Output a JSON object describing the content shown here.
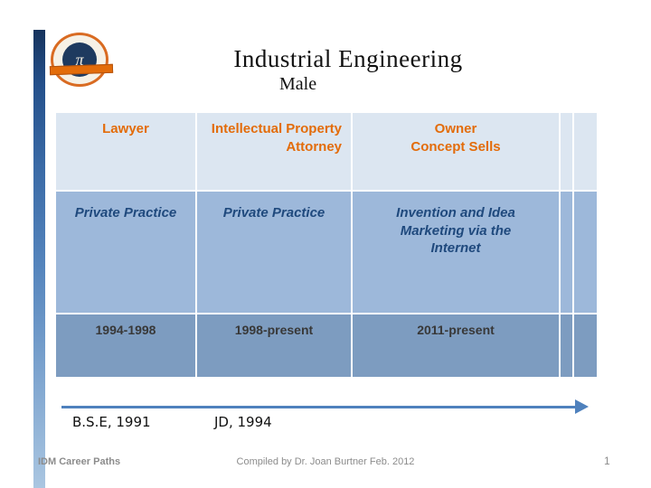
{
  "slide": {
    "title": "Industrial Engineering",
    "subtitle": "Male",
    "footer": {
      "left": "IDM Career Paths",
      "center": "Compiled by Dr. Joan Burtner Feb. 2012",
      "page": "1"
    }
  },
  "table": {
    "header": [
      "Lawyer",
      "Intellectual Property\nAttorney",
      "Owner\nConcept Sells"
    ],
    "roles": [
      "Private Practice",
      "Private Practice",
      "Invention and Idea\nMarketing via the\nInternet"
    ],
    "dates": [
      "1994-1998",
      "1998-present",
      "2011-present"
    ]
  },
  "timeline": {
    "labels": [
      "B.S.E, 1991",
      "JD, 1994"
    ]
  },
  "logo": {
    "monogram": "π"
  },
  "colors": {
    "accent_orange": "#E36C0A",
    "dark_blue_text": "#1F497D",
    "header_row_bg": "#DCE6F1",
    "middle_row_bg": "#9DB8DA",
    "bottom_row_bg": "#7D9CC0",
    "arrow": "#4F81BD",
    "footer_text": "#8C8C8C"
  }
}
